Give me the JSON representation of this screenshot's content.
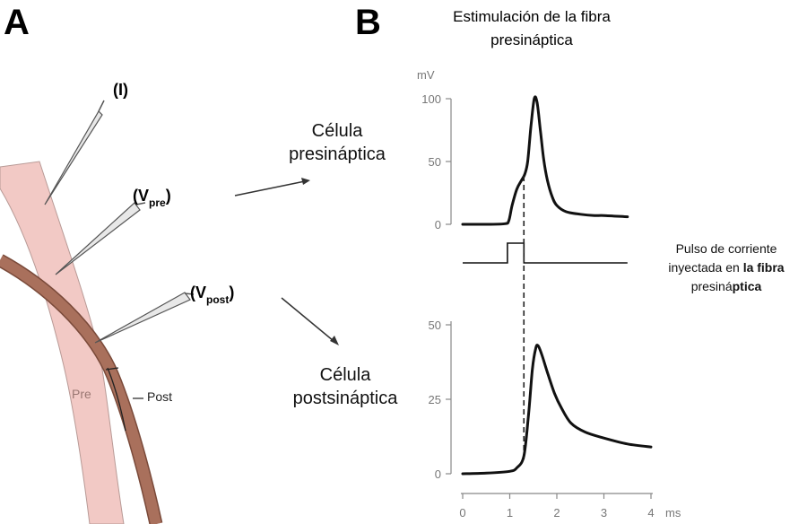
{
  "panels": {
    "a_letter": "A",
    "b_letter": "B"
  },
  "panel_a": {
    "electrode_i": "(I)",
    "electrode_vpre_main": "(V",
    "electrode_vpre_sub": "pre",
    "electrode_vpre_close": ")",
    "electrode_vpost_main": "(V",
    "electrode_vpost_sub": "post",
    "electrode_vpost_close": ")",
    "fiber_pre": "Pre",
    "fiber_post": "Post",
    "presyn_cell_line1": "Célula",
    "presyn_cell_line2": "presináptica",
    "postsyn_cell_line1": "Célula",
    "postsyn_cell_line2": "postsináptica",
    "colors": {
      "pre_fiber": "#f2c9c5",
      "post_fiber": "#a9705c",
      "electrode": "#555555"
    }
  },
  "panel_b": {
    "title_line1": "Estimulación de la fibra",
    "title_line2": "presináptica",
    "pulse_label_line1": "Pulso de corriente",
    "pulse_label_line2_a": "inyectada en ",
    "pulse_label_line2_b": "la fibra",
    "pulse_label_line3_a": "presiná",
    "pulse_label_line3_b": "ptica"
  },
  "chart_data": [
    {
      "type": "line",
      "title": "",
      "ylabel": "mV",
      "xlabel": "",
      "xlim": [
        0,
        4
      ],
      "ylim": [
        0,
        100
      ],
      "yticks": [
        "0",
        "50",
        "100"
      ],
      "grid": false,
      "series": [
        {
          "name": "",
          "x": [
            0,
            0.5,
            0.9,
            0.98,
            1.05,
            1.15,
            1.25,
            1.32,
            1.38,
            1.45,
            1.52,
            1.58,
            1.65,
            1.72,
            1.8,
            1.9,
            2.0,
            2.2,
            2.5,
            2.8,
            3.0,
            3.5
          ],
          "y": [
            0,
            0,
            0.5,
            3,
            15,
            28,
            35,
            40,
            50,
            78,
            100,
            97,
            75,
            52,
            35,
            22,
            15,
            10,
            8,
            7,
            7,
            6
          ]
        }
      ]
    },
    {
      "type": "line",
      "title": "",
      "ylabel": "",
      "xlabel": "ms",
      "xlim": [
        0,
        4
      ],
      "ylim": [
        0,
        50
      ],
      "xticks": [
        "0",
        "1",
        "2",
        "3",
        "4"
      ],
      "yticks": [
        "0",
        "25",
        "50"
      ],
      "grid": false,
      "series": [
        {
          "name": "",
          "x": [
            0,
            0.5,
            1.0,
            1.15,
            1.3,
            1.4,
            1.48,
            1.55,
            1.6,
            1.68,
            1.8,
            1.95,
            2.1,
            2.3,
            2.6,
            3.0,
            3.5,
            4.0
          ],
          "y": [
            0,
            0.2,
            0.8,
            2,
            6,
            20,
            35,
            42,
            43,
            40,
            34,
            27,
            22,
            17,
            14,
            12,
            10,
            9
          ]
        }
      ]
    }
  ],
  "stimulus_pulse": {
    "x": [
      0,
      0.95,
      0.95,
      1.3,
      1.3,
      3.5
    ],
    "level": [
      0,
      0,
      1,
      1,
      0,
      0
    ]
  },
  "dashed_marker_x": 1.3
}
